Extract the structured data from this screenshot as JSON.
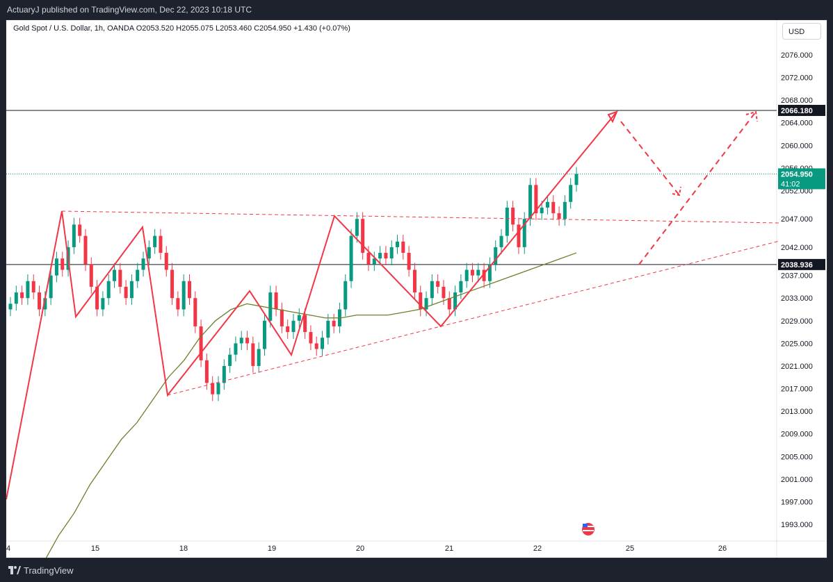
{
  "header": {
    "published": "ActuaryJ published on TradingView.com, Dec 22, 2023 10:18 UTC"
  },
  "symbol": {
    "info": "Gold Spot / U.S. Dollar, 1h, OANDA  O2053.520  H2055.075  L2053.460  C2054.950  +1.430 (+0.07%)"
  },
  "currency_button": "USD",
  "footer": {
    "brand": "TradingView"
  },
  "colors": {
    "up": "#089981",
    "down": "#f23645",
    "ma": "#6b7f2a",
    "drawing": "#f23645",
    "hline": "#131722",
    "last": "#089981"
  },
  "chart_data": {
    "type": "candlestick",
    "ylim": [
      1990,
      2080
    ],
    "y_ticks": [
      "2076.000",
      "2072.000",
      "2068.000",
      "2064.000",
      "2060.000",
      "2056.000",
      "2052.000",
      "2047.000",
      "2042.000",
      "2037.000",
      "2033.000",
      "2029.000",
      "2025.000",
      "2021.000",
      "2017.000",
      "2013.000",
      "2009.000",
      "2005.000",
      "2001.000",
      "1997.000",
      "1993.000"
    ],
    "x_ticks": [
      "4",
      "15",
      "18",
      "19",
      "20",
      "21",
      "22",
      "25",
      "26"
    ],
    "horizontal_levels": [
      {
        "label": "2066.180",
        "value": 2066.18
      },
      {
        "label": "2038.936",
        "value": 2038.936
      }
    ],
    "last_price": {
      "label": "2054.950",
      "timer": "41:02",
      "value": 2054.95
    },
    "close_path": [
      2032,
      2034,
      2033,
      2036,
      2034,
      2031,
      2033,
      2037,
      2040,
      2038,
      2042,
      2046,
      2044,
      2039,
      2035,
      2031,
      2033,
      2036,
      2038,
      2035,
      2033,
      2036,
      2038,
      2040,
      2042,
      2044,
      2041,
      2038,
      2033,
      2031,
      2036,
      2033,
      2028,
      2022,
      2018,
      2016,
      2018,
      2021,
      2023,
      2025,
      2026,
      2025,
      2021,
      2024,
      2029,
      2034,
      2031,
      2028,
      2027,
      2029,
      2030,
      2027,
      2025,
      2024,
      2026,
      2029,
      2028,
      2031,
      2036,
      2044,
      2047,
      2041,
      2039,
      2040,
      2041,
      2040,
      2042,
      2043,
      2041,
      2038,
      2034,
      2031,
      2033,
      2036,
      2035,
      2033,
      2031,
      2034,
      2036,
      2038,
      2037,
      2038,
      2036,
      2039,
      2042,
      2044,
      2049,
      2046,
      2042,
      2047,
      2053,
      2048,
      2049,
      2050,
      2048,
      2047,
      2050,
      2053,
      2054.95
    ],
    "ma_path": [
      1982,
      1986,
      1991,
      1995,
      2000,
      2004,
      2008,
      2011,
      2015,
      2019,
      2022,
      2026,
      2029,
      2031,
      2032,
      2031.5,
      2031,
      2030.5,
      2030,
      2029.5,
      2029.5,
      2030,
      2030,
      2030,
      2030.5,
      2031,
      2032,
      2033,
      2034,
      2035,
      2036,
      2037,
      2038,
      2039,
      2040,
      2041
    ]
  }
}
